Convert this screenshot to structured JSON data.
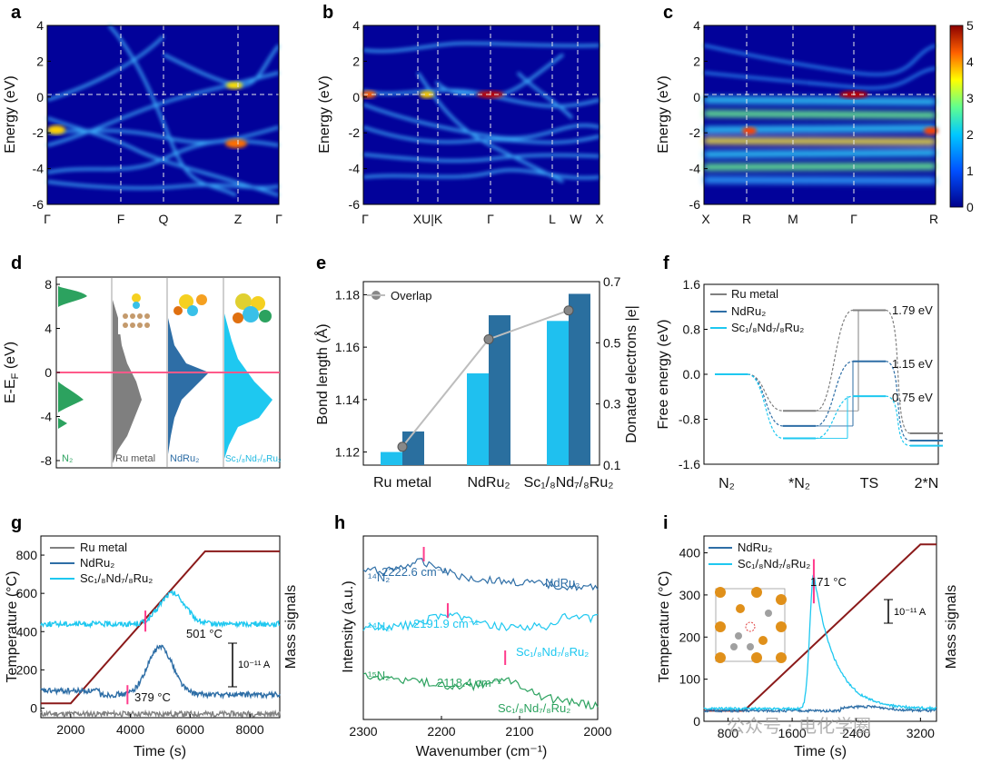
{
  "panels": {
    "a": {
      "label": "a",
      "ylabel": "Energy (eV)",
      "yticks": [
        "4",
        "2",
        "0",
        "-2",
        "-4",
        "-6"
      ],
      "kpoints": [
        "Γ",
        "F",
        "Q",
        "Z",
        "Γ"
      ]
    },
    "b": {
      "label": "b",
      "ylabel": "Energy (eV)",
      "yticks": [
        "4",
        "2",
        "0",
        "-2",
        "-4",
        "-6"
      ],
      "kpoints": [
        "Γ",
        "XU|K",
        "Γ",
        "L",
        "W",
        "X"
      ]
    },
    "c": {
      "label": "c",
      "ylabel": "Energy (eV)",
      "yticks": [
        "4",
        "2",
        "0",
        "-2",
        "-4",
        "-6"
      ],
      "kpoints": [
        "X",
        "R",
        "M",
        "Γ",
        "R"
      ]
    },
    "colorbar": {
      "ticks": [
        "5",
        "4",
        "3",
        "2",
        "1",
        "0"
      ]
    },
    "d": {
      "label": "d",
      "ylabel": "E-E",
      "ylabel_sub": "F",
      "ylabel_unit": " (eV)",
      "yticks": [
        "8",
        "4",
        "0",
        "-4",
        "-8"
      ],
      "columns": [
        "N₂",
        "Ru metal",
        "NdRu₂",
        "Sc₁/₈Nd₇/₈Ru₂"
      ]
    },
    "e": {
      "label": "e",
      "ylabel_left": "Bond length (Å)",
      "ylabel_right": "Donated electrons |e|",
      "legend": "Overlap"
    },
    "f": {
      "label": "f",
      "ylabel": "Free energy (eV)",
      "legend": [
        "Ru metal",
        "NdRu₂",
        "Sc₁/₈Nd₇/₈Ru₂"
      ],
      "barriers": [
        "1.79 eV",
        "1.15 eV",
        "0.75 eV"
      ]
    },
    "g": {
      "label": "g",
      "xlabel": "Time (s)",
      "ylabel_left": "Temperature (°C)",
      "ylabel_right": "Mass signals",
      "legend": [
        "Ru metal",
        "NdRu₂",
        "Sc₁/₈Nd₇/₈Ru₂"
      ],
      "annot1": "501 °C",
      "annot2": "379 °C",
      "scale": "10⁻¹¹ A"
    },
    "h": {
      "label": "h",
      "xlabel": "Wavenumber (cm⁻¹)",
      "ylabel": "Intensity (a.u.)",
      "peak1": "2222.6 cm⁻¹",
      "peak2": "2191.9 cm⁻¹",
      "peak3": "2118.4 cm⁻¹",
      "iso1": "¹⁴N₂",
      "iso2": "¹⁴N₂",
      "iso3": "¹⁵N₂",
      "name1": "NdRu₂",
      "name2": "Sc₁/₈Nd₇/₈Ru₂",
      "name3": "Sc₁/₈Nd₇/₈Ru₂"
    },
    "i": {
      "label": "i",
      "xlabel": "Time (s)",
      "ylabel_left": "Temperature (°C)",
      "ylabel_right": "Mass signals",
      "legend": [
        "NdRu₂",
        "Sc₁/₈Nd₇/₈Ru₂"
      ],
      "annot": "171 °C",
      "scale": "10⁻¹¹ A"
    }
  },
  "watermark": "公众号 · 电化学圈",
  "chart_data": [
    {
      "type": "heatmap",
      "id": "a",
      "ylim": [
        -6,
        4
      ],
      "ylabel": "Energy (eV)",
      "x": [
        "Γ",
        "F",
        "Q",
        "Z",
        "Γ"
      ]
    },
    {
      "type": "heatmap",
      "id": "b",
      "ylim": [
        -6,
        4
      ],
      "ylabel": "Energy (eV)",
      "x": [
        "Γ",
        "XU|K",
        "Γ",
        "L",
        "W",
        "X"
      ]
    },
    {
      "type": "heatmap",
      "id": "c",
      "ylim": [
        -6,
        4
      ],
      "ylabel": "Energy (eV)",
      "x": [
        "X",
        "R",
        "M",
        "Γ",
        "R"
      ],
      "colorbar": [
        0,
        5
      ]
    },
    {
      "type": "area",
      "id": "d",
      "ylim": [
        -9,
        9
      ],
      "ylabel": "E-EF (eV)",
      "categories": [
        "N₂",
        "Ru metal",
        "NdRu₂",
        "Sc₁/₈Nd₇/₈Ru₂"
      ]
    },
    {
      "type": "bar",
      "id": "e",
      "categories": [
        "Ru metal",
        "NdRu₂",
        "Sc₁/₈Nd₇/₈Ru₂"
      ],
      "series": [
        {
          "name": "Bond length (Å)",
          "values": [
            1.12,
            1.15,
            1.17
          ]
        },
        {
          "name": "Donated electrons |e|",
          "values": [
            0.21,
            0.59,
            0.66
          ]
        }
      ],
      "overlap": [
        1.122,
        1.163,
        1.174
      ],
      "ylim_left": [
        1.115,
        1.185
      ],
      "yticks_left": [
        "1.12",
        "1.14",
        "1.16",
        "1.18"
      ],
      "ylim_right": [
        0.1,
        0.7
      ],
      "yticks_right": [
        "0.1",
        "0.3",
        "0.5",
        "0.7"
      ]
    },
    {
      "type": "line",
      "id": "f",
      "categories": [
        "N₂",
        "*N₂",
        "TS",
        "2*N"
      ],
      "series": [
        {
          "name": "Ru metal",
          "values": [
            0,
            -0.65,
            1.14,
            -1.05
          ]
        },
        {
          "name": "NdRu₂",
          "values": [
            0,
            -0.92,
            0.23,
            -1.18
          ]
        },
        {
          "name": "Sc₁/₈Nd₇/₈Ru₂",
          "values": [
            0,
            -1.14,
            -0.39,
            -1.27
          ]
        }
      ],
      "ylim": [
        -1.6,
        1.6
      ],
      "yticks": [
        "1.6",
        "0.8",
        "0.0",
        "-0.8",
        "-1.6"
      ]
    },
    {
      "type": "line",
      "id": "g",
      "xlim": [
        1000,
        9000
      ],
      "xticks": [
        "2000",
        "4000",
        "6000",
        "8000"
      ],
      "ylim": [
        -50,
        900
      ],
      "yticks": [
        "0",
        "200",
        "400",
        "600",
        "800"
      ],
      "temperature": {
        "x": [
          1000,
          2000,
          6500,
          9000
        ],
        "y": [
          25,
          25,
          820,
          820
        ]
      },
      "series": [
        {
          "name": "Ru metal",
          "baseline": -30
        },
        {
          "name": "NdRu₂",
          "baseline": 70,
          "peak_x": 5000,
          "peak": 320
        },
        {
          "name": "Sc₁/₈Nd₇/₈Ru₂",
          "baseline": 440,
          "peak_x": 5400,
          "peak": 600
        }
      ]
    },
    {
      "type": "line",
      "id": "h",
      "xlim": [
        2300,
        2000
      ],
      "xticks": [
        "2300",
        "2200",
        "2100",
        "2000"
      ],
      "peaks": [
        2222.6,
        2191.9,
        2118.4
      ]
    },
    {
      "type": "line",
      "id": "i",
      "xlim": [
        500,
        3400
      ],
      "xticks": [
        "800",
        "1600",
        "2400",
        "3200"
      ],
      "ylim": [
        0,
        440
      ],
      "yticks": [
        "0",
        "100",
        "200",
        "300",
        "400"
      ],
      "temperature": {
        "x": [
          500,
          1000,
          3200,
          3400
        ],
        "y": [
          25,
          25,
          420,
          420
        ]
      },
      "series": [
        {
          "name": "NdRu₂",
          "baseline": 25
        },
        {
          "name": "Sc₁/₈Nd₇/₈Ru₂",
          "baseline": 30,
          "peak_x": 1870,
          "peak": 350
        }
      ]
    }
  ]
}
